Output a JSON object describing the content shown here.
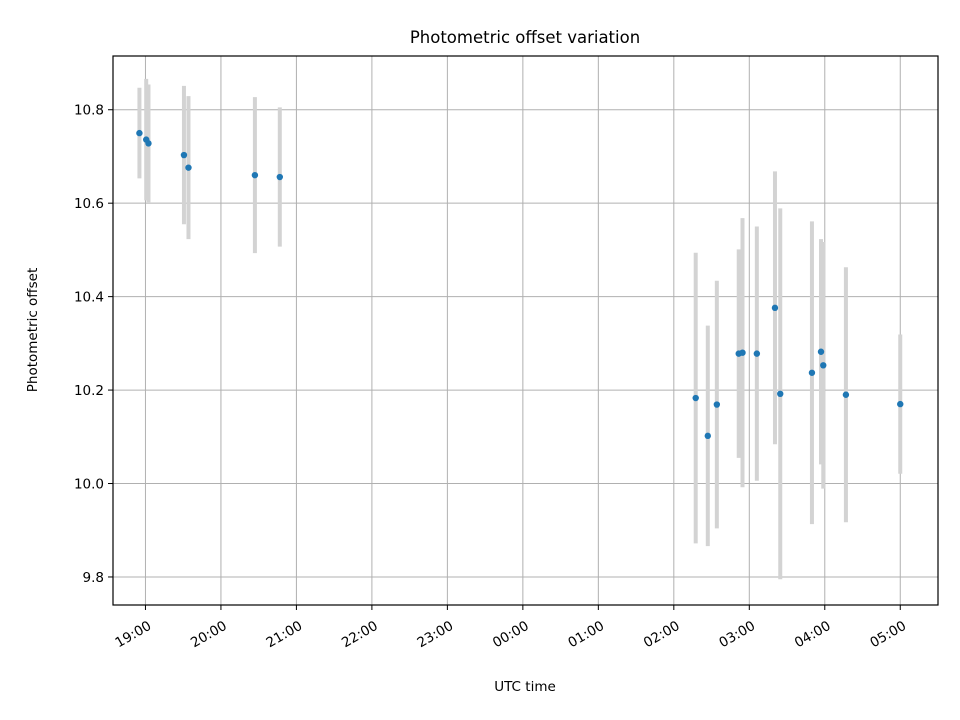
{
  "chart_data": {
    "type": "scatter",
    "title": "Photometric offset variation",
    "xlabel": "UTC time",
    "ylabel": "Photometric offset",
    "x_tick_labels": [
      "19:00",
      "20:00",
      "21:00",
      "22:00",
      "23:00",
      "00:00",
      "01:00",
      "02:00",
      "03:00",
      "04:00",
      "05:00"
    ],
    "x_tick_hours": [
      19,
      20,
      21,
      22,
      23,
      24,
      25,
      26,
      27,
      28,
      29
    ],
    "xlim_hours": [
      18.57,
      29.5
    ],
    "y_ticks": [
      9.8,
      10.0,
      10.2,
      10.4,
      10.6,
      10.8
    ],
    "y_tick_labels": [
      "9.8",
      "10.0",
      "10.2",
      "10.4",
      "10.6",
      "10.8"
    ],
    "ylim": [
      9.74,
      10.915
    ],
    "grid": true,
    "legend": "none",
    "x_axis_note": "x values are UTC times; hours >= 24 fall on the following day (00:00-05:00)",
    "points": [
      {
        "time": "18:55",
        "hour": 18.92,
        "y": 10.75,
        "err": 0.097
      },
      {
        "time": "19:01",
        "hour": 19.01,
        "y": 10.736,
        "err": 0.13
      },
      {
        "time": "19:02",
        "hour": 19.04,
        "y": 10.728,
        "err": 0.126
      },
      {
        "time": "19:30",
        "hour": 19.51,
        "y": 10.703,
        "err": 0.148
      },
      {
        "time": "19:34",
        "hour": 19.57,
        "y": 10.676,
        "err": 0.153
      },
      {
        "time": "20:27",
        "hour": 20.45,
        "y": 10.66,
        "err": 0.167
      },
      {
        "time": "20:47",
        "hour": 20.78,
        "y": 10.656,
        "err": 0.149
      },
      {
        "time": "02:17",
        "hour": 26.29,
        "y": 10.183,
        "err": 0.311
      },
      {
        "time": "02:27",
        "hour": 26.45,
        "y": 10.102,
        "err": 0.236
      },
      {
        "time": "02:34",
        "hour": 26.57,
        "y": 10.169,
        "err": 0.265
      },
      {
        "time": "02:51",
        "hour": 26.86,
        "y": 10.278,
        "err": 0.223
      },
      {
        "time": "02:54",
        "hour": 26.91,
        "y": 10.28,
        "err": 0.288
      },
      {
        "time": "03:06",
        "hour": 27.1,
        "y": 10.278,
        "err": 0.272
      },
      {
        "time": "03:20",
        "hour": 27.34,
        "y": 10.376,
        "err": 0.292
      },
      {
        "time": "03:25",
        "hour": 27.41,
        "y": 10.192,
        "err": 0.397
      },
      {
        "time": "03:50",
        "hour": 27.83,
        "y": 10.237,
        "err": 0.324
      },
      {
        "time": "03:57",
        "hour": 27.95,
        "y": 10.282,
        "err": 0.241
      },
      {
        "time": "03:59",
        "hour": 27.98,
        "y": 10.253,
        "err": 0.264
      },
      {
        "time": "04:17",
        "hour": 28.28,
        "y": 10.19,
        "err": 0.273
      },
      {
        "time": "05:00",
        "hour": 29.0,
        "y": 10.17,
        "err": 0.149
      }
    ],
    "colors": {
      "point": "#1f77b4",
      "errorbar": "#d3d3d3",
      "grid": "#b0b0b0",
      "axis": "#000000"
    }
  }
}
